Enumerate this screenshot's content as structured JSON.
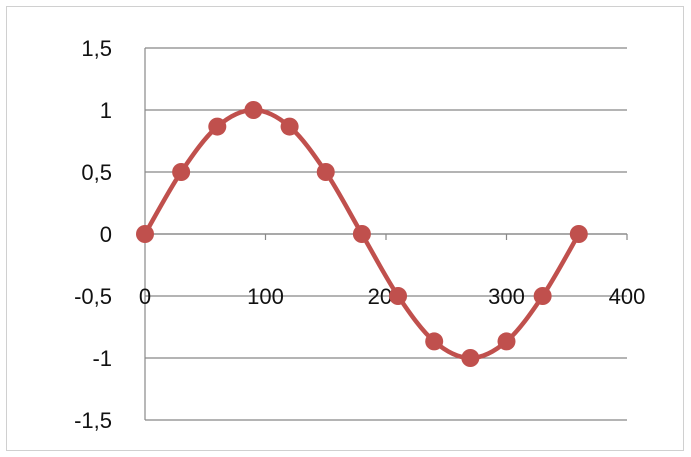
{
  "chart_data": {
    "type": "scatter",
    "x": [
      0,
      30,
      60,
      90,
      120,
      150,
      180,
      210,
      240,
      270,
      300,
      330,
      360
    ],
    "y": [
      0,
      0.5,
      0.866,
      1,
      0.866,
      0.5,
      0,
      -0.5,
      -0.866,
      -1,
      -0.866,
      -0.5,
      0
    ],
    "xlim": [
      0,
      400
    ],
    "ylim": [
      -1.5,
      1.5
    ],
    "x_ticks": [
      0,
      100,
      200,
      300,
      400
    ],
    "x_tick_labels": [
      "0",
      "100",
      "200",
      "300",
      "400"
    ],
    "y_ticks": [
      1.5,
      1,
      0.5,
      0,
      -0.5,
      -1,
      -1.5
    ],
    "y_tick_labels": [
      "1,5",
      "1",
      "0,5",
      "0",
      "-0,5",
      "-1",
      "-1,5"
    ],
    "smooth_line": true,
    "grid": "horizontal",
    "legend": "none",
    "title": "",
    "xlabel": "",
    "ylabel": "",
    "series_color": "#c0504d",
    "grid_color": "#888888"
  }
}
